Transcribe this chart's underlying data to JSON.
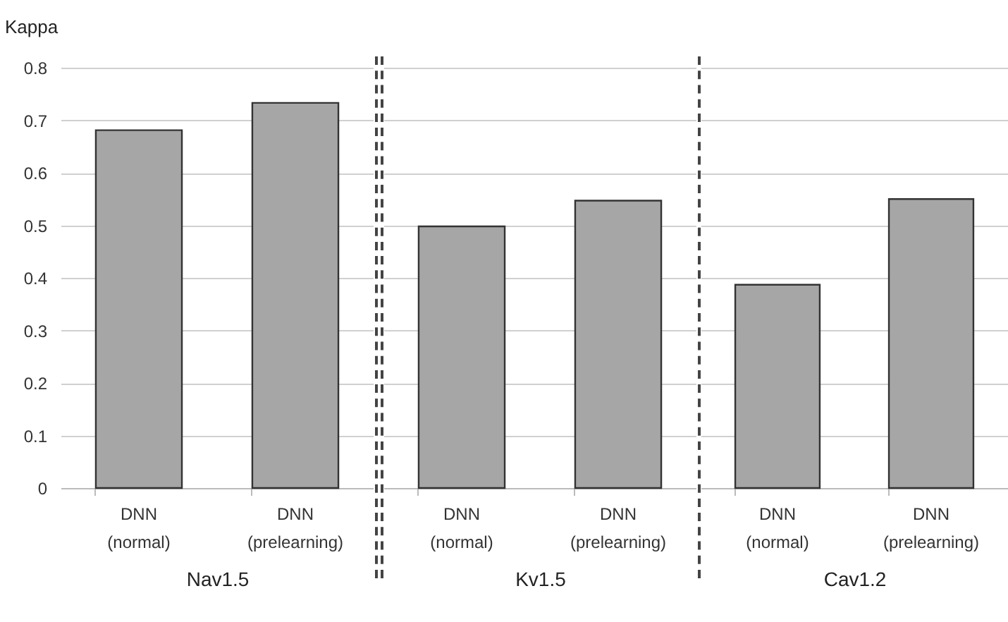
{
  "chart_data": [
    {
      "type": "bar",
      "ylabel": "Kappa",
      "xlabel": "Nav1.5",
      "categories": [
        "DNN (normal)",
        "DNN (prelearning)"
      ],
      "values": [
        0.681,
        0.733
      ],
      "color": "#a6a6a6",
      "ylim": [
        0,
        0.8
      ],
      "yticks": [
        0,
        0.1,
        0.2,
        0.3,
        0.4,
        0.5,
        0.6,
        0.7,
        0.8
      ],
      "grid": "y"
    },
    {
      "type": "bar",
      "xlabel": "Kv1.5",
      "categories": [
        "DNN (normal)",
        "DNN (prelearning)"
      ],
      "values": [
        0.498,
        0.547
      ],
      "color": "#a6a6a6",
      "ylim": [
        0,
        0.8
      ],
      "yticks": [
        0,
        0.1,
        0.2,
        0.3,
        0.4,
        0.5,
        0.6,
        0.7,
        0.8
      ],
      "grid": "y",
      "tick_labels": "x"
    },
    {
      "type": "bar",
      "xlabel": "Cav1.2",
      "categories": [
        "DNN (normal)",
        "DNN (prelearning)"
      ],
      "values": [
        0.387,
        0.55
      ],
      "color": "#a6a6a6",
      "ylim": [
        0,
        0.8
      ],
      "yticks": [
        0,
        0.1,
        0.2,
        0.3,
        0.4,
        0.5,
        0.6,
        0.7,
        0.8
      ],
      "grid": "y",
      "tick_labels": "x"
    }
  ]
}
